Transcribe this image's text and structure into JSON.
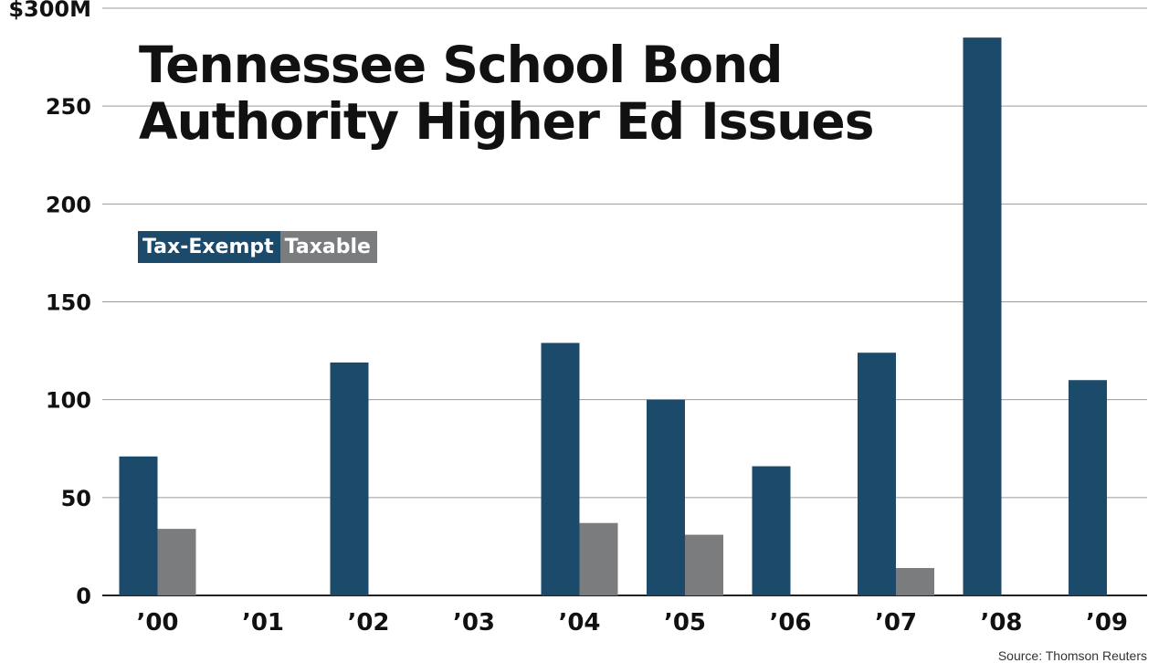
{
  "chart_data": {
    "type": "bar",
    "title": [
      "Tennessee School Bond",
      "Authority Higher Ed Issues"
    ],
    "categories": [
      "’00",
      "’01",
      "’02",
      "’03",
      "’04",
      "’05",
      "’06",
      "’07",
      "’08",
      "’09"
    ],
    "series": [
      {
        "name": "Tax-Exempt",
        "color": "#1b4a6b",
        "values": [
          71,
          0,
          119,
          0,
          129,
          100,
          66,
          124,
          285,
          110
        ]
      },
      {
        "name": "Taxable",
        "color": "#7b7c7e",
        "values": [
          34,
          0,
          0,
          0,
          37,
          31,
          0,
          14,
          0,
          0
        ]
      }
    ],
    "ylim": [
      0,
      300
    ],
    "yticks": [
      0,
      50,
      100,
      150,
      200,
      250,
      300
    ],
    "ytick_labels": [
      "0",
      "50",
      "100",
      "150",
      "200",
      "250",
      "$300M"
    ],
    "grid": true,
    "legend_position": "top-left",
    "source": "Source: Thomson Reuters"
  }
}
